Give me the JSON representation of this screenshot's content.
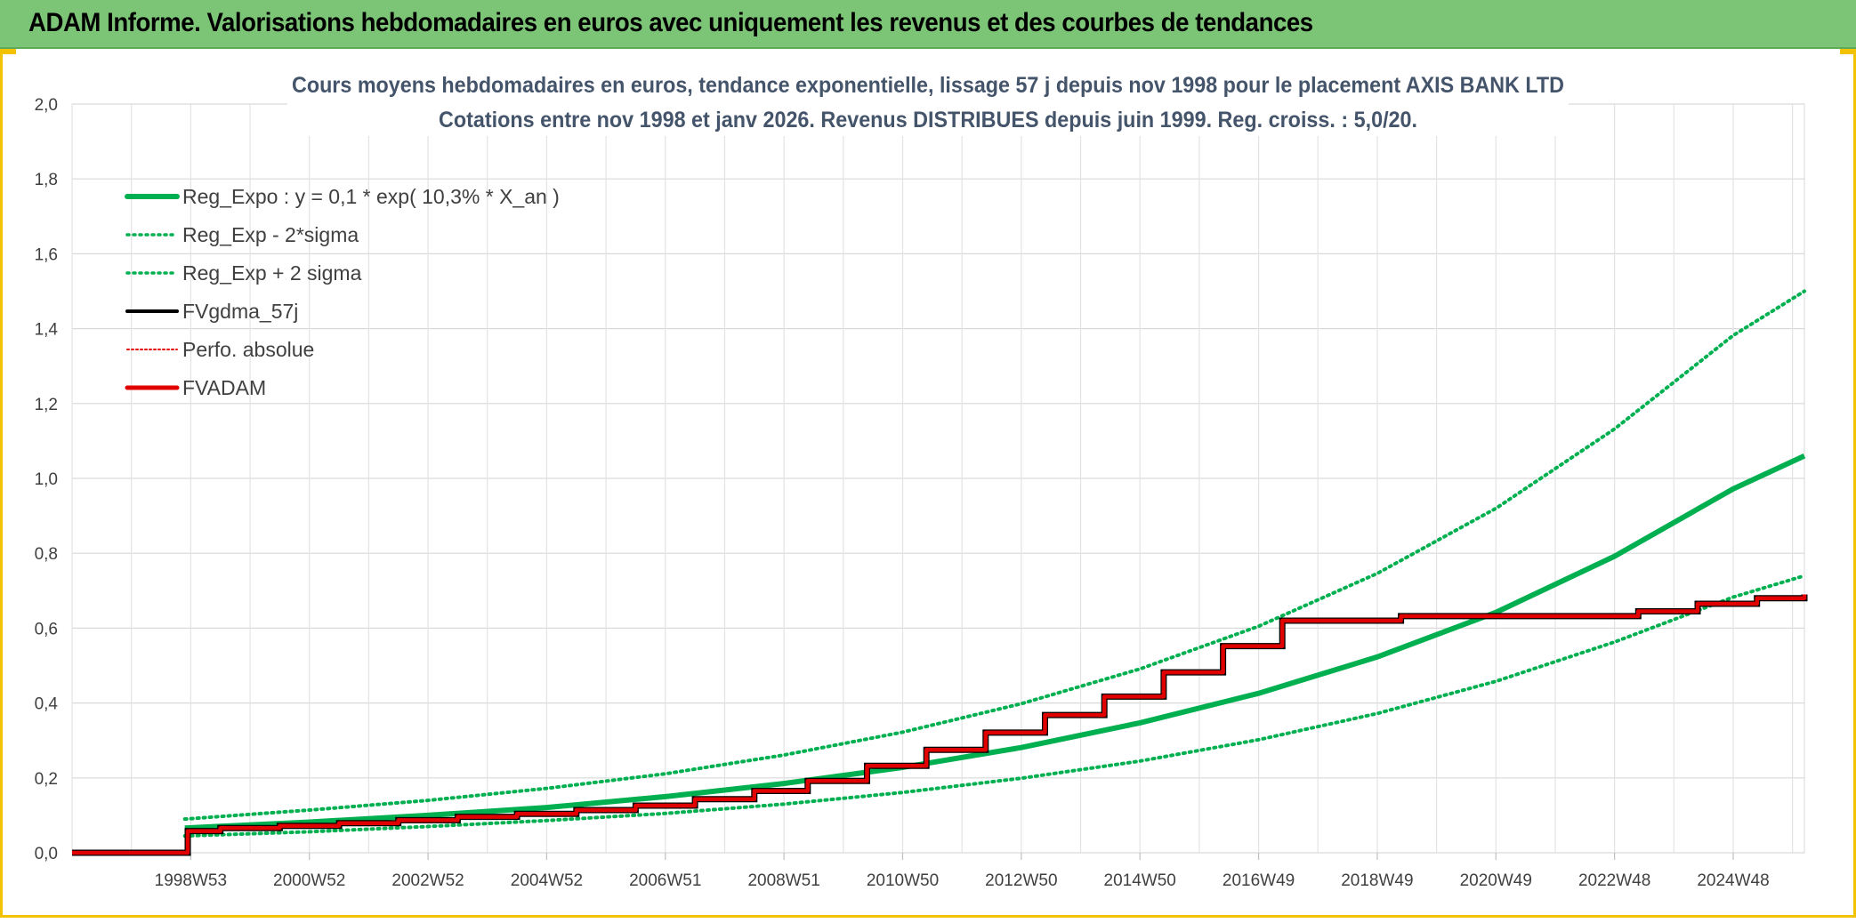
{
  "header": {
    "title": "ADAM Informe. Valorisations hebdomadaires en euros avec uniquement les revenus et des courbes de tendances"
  },
  "colors": {
    "header_bg": "#7cc576",
    "frame": "#f2c200",
    "green": "#00b050",
    "black": "#000000",
    "red": "#e00000",
    "grid": "#d9d9d9"
  },
  "chart_data": {
    "type": "line",
    "title_line1": "Cours moyens hebdomadaires en euros, tendance exponentielle, lissage 57 j depuis nov 1998 pour le placement AXIS BANK LTD",
    "title_line2": "Cotations entre nov 1998 et janv 2026. Revenus DISTRIBUES depuis juin 1999. Reg. croiss. : 5,0/20.",
    "xlabel": "",
    "ylabel": "",
    "xlim": [
      1997.0,
      2026.2
    ],
    "ylim": [
      0,
      2.0
    ],
    "y_ticks": [
      "0,0",
      "0,2",
      "0,4",
      "0,6",
      "0,8",
      "1,0",
      "1,2",
      "1,4",
      "1,6",
      "1,8",
      "2,0"
    ],
    "x_ticks": [
      {
        "label": "1998W53",
        "x": 1999.0
      },
      {
        "label": "2000W52",
        "x": 2001.0
      },
      {
        "label": "2002W52",
        "x": 2003.0
      },
      {
        "label": "2004W52",
        "x": 2005.0
      },
      {
        "label": "2006W51",
        "x": 2007.0
      },
      {
        "label": "2008W51",
        "x": 2009.0
      },
      {
        "label": "2010W50",
        "x": 2011.0
      },
      {
        "label": "2012W50",
        "x": 2013.0
      },
      {
        "label": "2014W50",
        "x": 2015.0
      },
      {
        "label": "2016W49",
        "x": 2017.0
      },
      {
        "label": "2018W49",
        "x": 2019.0
      },
      {
        "label": "2020W49",
        "x": 2021.0
      },
      {
        "label": "2022W48",
        "x": 2023.0
      },
      {
        "label": "2024W48",
        "x": 2025.0
      }
    ],
    "legend": [
      {
        "name": "Reg_Expo : y = 0,1 * exp( 10,3% *  X_an )",
        "color": "#00b050",
        "style": "solid-thick"
      },
      {
        "name": "Reg_Exp - 2*sigma",
        "color": "#00b050",
        "style": "dotted"
      },
      {
        "name": "Reg_Exp + 2 sigma",
        "color": "#00b050",
        "style": "dotted"
      },
      {
        "name": "FVgdma_57j",
        "color": "#000000",
        "style": "solid"
      },
      {
        "name": "Perfo. absolue",
        "color": "#e00000",
        "style": "dotted-thin"
      },
      {
        "name": "FVADAM",
        "color": "#e00000",
        "style": "solid-thick"
      }
    ],
    "series": [
      {
        "name": "Reg_Expo",
        "x": [
          1998.9,
          2001,
          2003,
          2005,
          2007,
          2009,
          2011,
          2013,
          2015,
          2017,
          2019,
          2021,
          2023,
          2025,
          2026.2
        ],
        "values": [
          0.066,
          0.082,
          0.1,
          0.121,
          0.15,
          0.185,
          0.228,
          0.281,
          0.347,
          0.426,
          0.523,
          0.642,
          0.792,
          0.972,
          1.06
        ]
      },
      {
        "name": "Reg_Exp - 2*sigma",
        "x": [
          1998.9,
          2001,
          2003,
          2005,
          2007,
          2009,
          2011,
          2013,
          2015,
          2017,
          2019,
          2021,
          2023,
          2025,
          2026.2
        ],
        "values": [
          0.045,
          0.056,
          0.07,
          0.086,
          0.105,
          0.13,
          0.161,
          0.199,
          0.245,
          0.302,
          0.372,
          0.458,
          0.563,
          0.683,
          0.74
        ]
      },
      {
        "name": "Reg_Exp + 2 sigma",
        "x": [
          1998.9,
          2001,
          2003,
          2005,
          2007,
          2009,
          2011,
          2013,
          2015,
          2017,
          2019,
          2021,
          2023,
          2025,
          2026.2
        ],
        "values": [
          0.09,
          0.114,
          0.14,
          0.172,
          0.211,
          0.261,
          0.322,
          0.398,
          0.491,
          0.605,
          0.746,
          0.92,
          1.132,
          1.382,
          1.5
        ]
      },
      {
        "name": "FVADAM",
        "x": [
          1997.0,
          1998.9,
          1998.95,
          1999.5,
          2000.5,
          2001.5,
          2002.5,
          2003.5,
          2004.5,
          2005.5,
          2006.5,
          2007.5,
          2008.5,
          2009.4,
          2010.4,
          2011.4,
          2012.4,
          2013.4,
          2014.4,
          2015.4,
          2016.4,
          2017.4,
          2019.4,
          2023.4,
          2024.4,
          2025.4,
          2026.2
        ],
        "values": [
          0.0,
          0.0,
          0.058,
          0.066,
          0.072,
          0.079,
          0.087,
          0.096,
          0.104,
          0.114,
          0.126,
          0.143,
          0.165,
          0.192,
          0.232,
          0.275,
          0.321,
          0.368,
          0.417,
          0.482,
          0.552,
          0.62,
          0.632,
          0.645,
          0.665,
          0.68,
          0.69
        ]
      },
      {
        "name": "FVgdma_57j",
        "x": [
          1997.0,
          1998.9,
          1998.95,
          1999.5,
          2000.5,
          2001.5,
          2002.5,
          2003.5,
          2004.5,
          2005.5,
          2006.5,
          2007.5,
          2008.5,
          2009.4,
          2010.4,
          2011.4,
          2012.4,
          2013.4,
          2014.4,
          2015.4,
          2016.4,
          2017.4,
          2019.4,
          2023.4,
          2024.4,
          2025.4,
          2026.2
        ],
        "values": [
          0.0,
          0.0,
          0.058,
          0.066,
          0.072,
          0.079,
          0.087,
          0.096,
          0.104,
          0.114,
          0.126,
          0.143,
          0.165,
          0.192,
          0.232,
          0.275,
          0.321,
          0.368,
          0.417,
          0.482,
          0.552,
          0.62,
          0.632,
          0.645,
          0.665,
          0.68,
          0.69
        ]
      }
    ]
  }
}
